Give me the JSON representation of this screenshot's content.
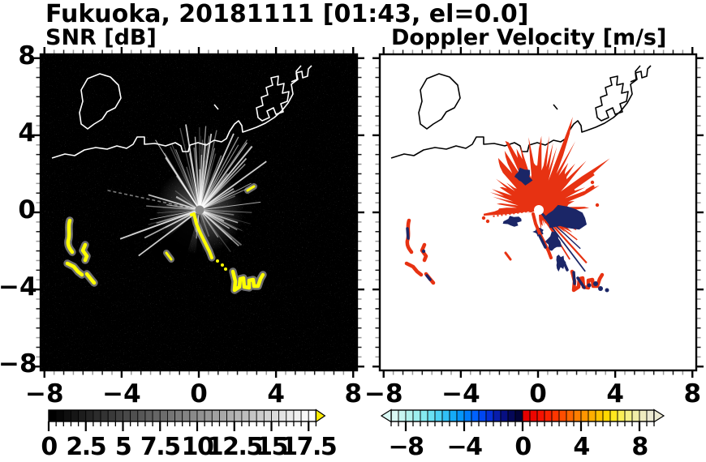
{
  "title": "Fukuoka, 20181111 [01:43, el=0.0]",
  "panels": {
    "left": {
      "title": "SNR [dB]"
    },
    "right": {
      "title": "Doppler Velocity [m/s]"
    }
  },
  "axes": {
    "range": [
      -8.2,
      8.2
    ],
    "xticks": [
      -8,
      -4,
      0,
      4,
      8
    ],
    "xtick_labels": [
      "−8",
      "−4",
      "0",
      "4",
      "8"
    ],
    "yticks": [
      8,
      4,
      0,
      -4,
      -8
    ],
    "ytick_labels": [
      "8",
      "4",
      "0",
      "−4",
      "−8"
    ],
    "minor_step": 0.5
  },
  "snr_colorbar": {
    "min": 0,
    "max": 18,
    "segments": 36,
    "start_color": "#000000",
    "end_color": "#ffffff",
    "over_arrow_color": "#ffec00",
    "tick_values": [
      0,
      2.5,
      5,
      7.5,
      10,
      12.5,
      15,
      17.5
    ],
    "tick_labels": [
      "0",
      "2.5",
      "5",
      "7.5",
      "10",
      "12.5",
      "15",
      "17.5"
    ]
  },
  "velocity_colorbar": {
    "min": -9,
    "max": 9,
    "segments": 36,
    "colors": [
      "#d9f8f4",
      "#c7f5f1",
      "#b3f2ee",
      "#9defee",
      "#85eaf0",
      "#69e0f2",
      "#4dd2f4",
      "#31c0f6",
      "#15abf8",
      "#0595fa",
      "#007cfc",
      "#0062fe",
      "#0047f2",
      "#0530d6",
      "#081dac",
      "#070f82",
      "#050858",
      "#030338",
      "#e60000",
      "#ee0600",
      "#f51200",
      "#fa2200",
      "#fe3600",
      "#ff4e00",
      "#ff6600",
      "#ff7e00",
      "#ff9600",
      "#ffae00",
      "#ffc400",
      "#ffd800",
      "#ffe71e",
      "#f9ee56",
      "#f4f086",
      "#f1eea8",
      "#efecc0",
      "#ecead2"
    ],
    "tick_values": [
      -8,
      -4,
      0,
      4,
      8
    ],
    "tick_labels": [
      "−8",
      "−4",
      "0",
      "4",
      "8"
    ]
  },
  "colors": {
    "snr_background": "#000000",
    "snr_coastline": "#ffffff",
    "snr_clutter": "#ffff00",
    "snr_radar_dot": "#8a8a8a",
    "vel_background": "#ffffff",
    "vel_coastline": "#000000",
    "vel_positive": "#e73212",
    "vel_negative": "#1b2667"
  },
  "chart_data": [
    {
      "type": "heatmap",
      "title": "SNR [dB]",
      "xlim": [
        -8.2,
        8.2
      ],
      "ylim": [
        -8.2,
        8.2
      ],
      "xticks": [
        -8,
        -4,
        0,
        4,
        8
      ],
      "yticks": [
        -8,
        -4,
        0,
        4,
        8
      ],
      "colorbar": {
        "range": [
          0,
          18
        ],
        "ticks": [
          0,
          2.5,
          5,
          7.5,
          10,
          12.5,
          15,
          17.5
        ],
        "colormap": "black-to-white grayscale with yellow over-range arrow"
      },
      "features": [
        "black background filled with faint speckle noise",
        "white coastline of Hakata Bay with blocky harbor piers across the upper half",
        "bright white radial beams emanating from radar located near origin (0,0)",
        "gray radar dot at origin",
        "dark no-data wedge south-southwest of radar",
        "yellow high-SNR clutter chain from origin toward southeast, about (0,-0.3) to (3.3,-4.2)",
        "yellow clutter arcs near (-6.8,-1.7), (-6.0,-2.6) and (-6.6,-3.6)",
        "small yellow echo near (2.6,1.1) and (-1.7,-2.4)"
      ]
    },
    {
      "type": "heatmap",
      "title": "Doppler Velocity [m/s]",
      "xlim": [
        -8.2,
        8.2
      ],
      "ylim": [
        -8.2,
        8.2
      ],
      "xticks": [
        -8,
        -4,
        0,
        4,
        8
      ],
      "yticks": [
        -8,
        -4,
        0,
        4,
        8
      ],
      "colorbar": {
        "range": [
          -9,
          9
        ],
        "ticks": [
          -8,
          -4,
          0,
          4,
          8
        ],
        "colormap": "pale cyan to blue to navy for negative, red to orange to cream for positive"
      },
      "features": [
        "white background with black coastline identical to SNR panel",
        "spiky echo starburst around radar origin, mostly red (positive velocity) fanning north, northeast and northwest",
        "narrow red wedge due west of radar",
        "navy (negative velocity) patches east and south-southeast of radar",
        "thin red and navy needle rays toward southeast",
        "red-and-navy clutter chain and cluster toward southeast, about (1.6,-3.3) to (3.6,-4.1)",
        "red clutter arcs with navy cores near (-6.8,-1.7), (-6.0,-2.6) and (-6.6,-3.6)",
        "white hole at radar origin"
      ]
    }
  ]
}
